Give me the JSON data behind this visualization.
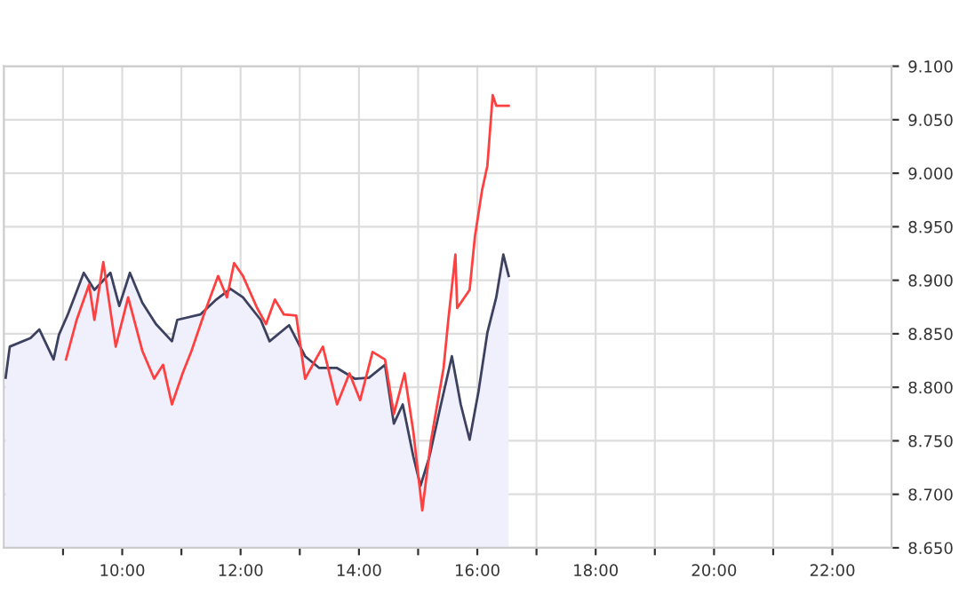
{
  "chart_data": {
    "type": "line",
    "xlim": [
      8,
      23
    ],
    "ylim": [
      8.65,
      9.1
    ],
    "xticks": [
      {
        "value": 9,
        "label": null
      },
      {
        "value": 10,
        "label": "10:00"
      },
      {
        "value": 11,
        "label": null
      },
      {
        "value": 12,
        "label": "12:00"
      },
      {
        "value": 13,
        "label": null
      },
      {
        "value": 14,
        "label": "14:00"
      },
      {
        "value": 15,
        "label": null
      },
      {
        "value": 16,
        "label": "16:00"
      },
      {
        "value": 17,
        "label": null
      },
      {
        "value": 18,
        "label": "18:00"
      },
      {
        "value": 19,
        "label": null
      },
      {
        "value": 20,
        "label": "20:00"
      },
      {
        "value": 21,
        "label": null
      },
      {
        "value": 22,
        "label": "22:00"
      }
    ],
    "yticks": [
      {
        "value": 8.65,
        "label": "8.650"
      },
      {
        "value": 8.7,
        "label": "8.700"
      },
      {
        "value": 8.75,
        "label": "8.750"
      },
      {
        "value": 8.8,
        "label": "8.800"
      },
      {
        "value": 8.85,
        "label": "8.850"
      },
      {
        "value": 8.9,
        "label": "8.900"
      },
      {
        "value": 8.95,
        "label": "8.950"
      },
      {
        "value": 9.0,
        "label": "9.000"
      },
      {
        "value": 9.05,
        "label": "9.050"
      },
      {
        "value": 9.1,
        "label": "9.100"
      }
    ],
    "grid": true,
    "marker": "none",
    "line_style": "solid",
    "series": [
      {
        "type": "area",
        "color": "#3c4160",
        "x": [
          8.03,
          8.1,
          8.45,
          8.6,
          8.84,
          8.93,
          9.08,
          9.35,
          9.53,
          9.8,
          9.95,
          10.13,
          10.34,
          10.57,
          10.84,
          10.93,
          11.32,
          11.59,
          11.83,
          12.04,
          12.34,
          12.49,
          12.82,
          13.09,
          13.33,
          13.63,
          13.93,
          14.17,
          14.44,
          14.59,
          14.74,
          14.92,
          15.04,
          15.19,
          15.37,
          15.57,
          15.72,
          15.87,
          16.02,
          16.17,
          16.32,
          16.44,
          16.53
        ],
        "values": [
          8.809,
          8.838,
          8.846,
          8.854,
          8.826,
          8.849,
          8.868,
          8.907,
          8.891,
          8.907,
          8.876,
          8.907,
          8.879,
          8.859,
          8.843,
          8.863,
          8.868,
          8.882,
          8.892,
          8.884,
          8.863,
          8.843,
          8.858,
          8.829,
          8.818,
          8.818,
          8.808,
          8.809,
          8.821,
          8.766,
          8.784,
          8.735,
          8.708,
          8.735,
          8.78,
          8.829,
          8.784,
          8.751,
          8.796,
          8.851,
          8.884,
          8.924,
          8.904
        ]
      },
      {
        "color": "#ff4040",
        "x": [
          9.05,
          9.23,
          9.44,
          9.53,
          9.68,
          9.89,
          10.1,
          10.34,
          10.54,
          10.69,
          10.84,
          11.02,
          11.17,
          11.38,
          11.62,
          11.77,
          11.89,
          12.04,
          12.28,
          12.43,
          12.58,
          12.73,
          12.94,
          13.09,
          13.39,
          13.63,
          13.84,
          14.02,
          14.23,
          14.44,
          14.59,
          14.77,
          14.92,
          15.07,
          15.22,
          15.43,
          15.51,
          15.63,
          15.66,
          15.87,
          15.96,
          16.08,
          16.17,
          16.26,
          16.32,
          16.53
        ],
        "values": [
          8.826,
          8.863,
          8.896,
          8.863,
          8.917,
          8.838,
          8.884,
          8.834,
          8.808,
          8.821,
          8.784,
          8.813,
          8.834,
          8.868,
          8.904,
          8.884,
          8.916,
          8.904,
          8.874,
          8.859,
          8.882,
          8.868,
          8.867,
          8.808,
          8.838,
          8.784,
          8.813,
          8.788,
          8.833,
          8.826,
          8.775,
          8.813,
          8.758,
          8.685,
          8.751,
          8.818,
          8.863,
          8.924,
          8.874,
          8.891,
          8.941,
          8.984,
          9.007,
          9.073,
          9.063,
          9.063
        ]
      }
    ]
  }
}
